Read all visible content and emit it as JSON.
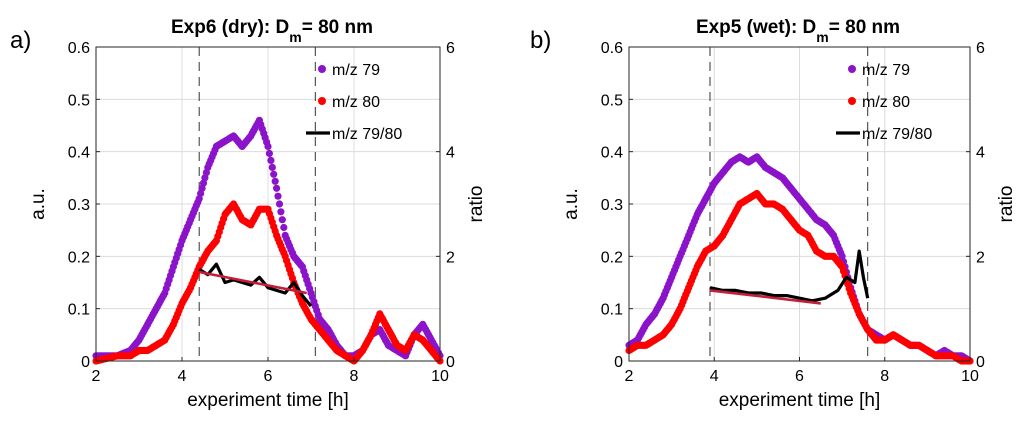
{
  "figure": {
    "panels": [
      {
        "label": "a)",
        "title_main": "Exp6 (dry): D",
        "title_sub": "m",
        "title_end": "= 80 nm"
      },
      {
        "label": "b)",
        "title_main": "Exp5 (wet): D",
        "title_sub": "m",
        "title_end": "= 80 nm"
      }
    ]
  },
  "chart_data": [
    {
      "type": "scatter",
      "xlabel": "experiment time [h]",
      "ylabel": "a.u.",
      "y2label": "ratio",
      "xlim": [
        2,
        10
      ],
      "ylim": [
        0,
        0.6
      ],
      "y2lim": [
        0,
        6
      ],
      "xticks": [
        2,
        4,
        6,
        8,
        10
      ],
      "yticks": [
        0,
        0.1,
        0.2,
        0.3,
        0.4,
        0.5,
        0.6
      ],
      "y2ticks": [
        0,
        2,
        4,
        6
      ],
      "grid": true,
      "legend_position": "top-right",
      "vlines": [
        4.4,
        7.1
      ],
      "series": [
        {
          "name": "m/z 79",
          "axis": "left",
          "marker": "dots",
          "color": "#8b13c9",
          "x": [
            2.0,
            2.5,
            2.8,
            3.0,
            3.2,
            3.4,
            3.6,
            3.8,
            4.0,
            4.2,
            4.4,
            4.6,
            4.8,
            5.0,
            5.2,
            5.4,
            5.6,
            5.8,
            6.0,
            6.2,
            6.4,
            6.6,
            6.8,
            7.0,
            7.2,
            7.4,
            7.6,
            7.8,
            8.0,
            8.2,
            8.4,
            8.6,
            8.8,
            9.0,
            9.2,
            9.4,
            9.6,
            9.8,
            10.0
          ],
          "y": [
            0.01,
            0.01,
            0.02,
            0.04,
            0.07,
            0.1,
            0.13,
            0.18,
            0.23,
            0.27,
            0.31,
            0.37,
            0.41,
            0.42,
            0.43,
            0.41,
            0.43,
            0.46,
            0.41,
            0.33,
            0.24,
            0.2,
            0.18,
            0.13,
            0.08,
            0.06,
            0.03,
            0.01,
            0.01,
            0.02,
            0.05,
            0.06,
            0.03,
            0.02,
            0.01,
            0.05,
            0.07,
            0.04,
            0.01
          ]
        },
        {
          "name": "m/z 80",
          "axis": "left",
          "marker": "dots",
          "color": "#ff0000",
          "x": [
            2.0,
            2.5,
            2.8,
            3.0,
            3.2,
            3.4,
            3.6,
            3.8,
            4.0,
            4.2,
            4.4,
            4.6,
            4.8,
            5.0,
            5.2,
            5.4,
            5.6,
            5.8,
            6.0,
            6.2,
            6.4,
            6.6,
            6.8,
            7.0,
            7.2,
            7.4,
            7.6,
            7.8,
            8.0,
            8.2,
            8.4,
            8.6,
            8.8,
            9.0,
            9.2,
            9.4,
            9.6,
            9.8,
            10.0
          ],
          "y": [
            0.0,
            0.01,
            0.01,
            0.02,
            0.02,
            0.03,
            0.04,
            0.07,
            0.11,
            0.14,
            0.18,
            0.21,
            0.23,
            0.28,
            0.3,
            0.27,
            0.26,
            0.29,
            0.29,
            0.24,
            0.2,
            0.15,
            0.11,
            0.08,
            0.06,
            0.04,
            0.02,
            0.01,
            0.0,
            0.02,
            0.05,
            0.09,
            0.06,
            0.03,
            0.02,
            0.05,
            0.04,
            0.02,
            0.0
          ]
        },
        {
          "name": "m/z 79/80",
          "axis": "right",
          "marker": "line",
          "color": "#000000",
          "x": [
            4.4,
            4.6,
            4.8,
            5.0,
            5.2,
            5.4,
            5.6,
            5.8,
            6.0,
            6.2,
            6.4,
            6.6,
            6.8,
            7.0
          ],
          "y": [
            1.75,
            1.65,
            1.85,
            1.5,
            1.55,
            1.5,
            1.45,
            1.6,
            1.4,
            1.35,
            1.3,
            1.5,
            1.25,
            1.05
          ]
        },
        {
          "name": "",
          "axis": "right",
          "marker": "line",
          "color": "#c41e3a",
          "x": [
            4.4,
            6.9
          ],
          "y": [
            1.7,
            1.3
          ]
        }
      ]
    },
    {
      "type": "scatter",
      "xlabel": "experiment time [h]",
      "ylabel": "a.u.",
      "y2label": "ratio",
      "xlim": [
        2,
        10
      ],
      "ylim": [
        0,
        0.6
      ],
      "y2lim": [
        0,
        6
      ],
      "xticks": [
        2,
        4,
        6,
        8,
        10
      ],
      "yticks": [
        0,
        0.1,
        0.2,
        0.3,
        0.4,
        0.5,
        0.6
      ],
      "y2ticks": [
        0,
        2,
        4,
        6
      ],
      "grid": true,
      "legend_position": "top-right",
      "vlines": [
        3.9,
        7.6
      ],
      "series": [
        {
          "name": "m/z 79",
          "axis": "left",
          "marker": "dots",
          "color": "#8b13c9",
          "x": [
            2.0,
            2.2,
            2.4,
            2.6,
            2.8,
            3.0,
            3.2,
            3.4,
            3.6,
            3.8,
            4.0,
            4.2,
            4.4,
            4.6,
            4.8,
            5.0,
            5.2,
            5.4,
            5.6,
            5.8,
            6.0,
            6.2,
            6.4,
            6.6,
            6.8,
            7.0,
            7.2,
            7.4,
            7.6,
            7.8,
            8.0,
            8.2,
            8.4,
            8.6,
            8.8,
            9.0,
            9.2,
            9.4,
            9.6,
            9.8,
            10.0
          ],
          "y": [
            0.03,
            0.04,
            0.07,
            0.09,
            0.12,
            0.16,
            0.2,
            0.24,
            0.28,
            0.31,
            0.34,
            0.36,
            0.38,
            0.39,
            0.38,
            0.39,
            0.37,
            0.36,
            0.35,
            0.33,
            0.31,
            0.29,
            0.27,
            0.26,
            0.24,
            0.2,
            0.14,
            0.09,
            0.06,
            0.05,
            0.04,
            0.05,
            0.04,
            0.03,
            0.03,
            0.02,
            0.01,
            0.02,
            0.01,
            0.01,
            0.0
          ]
        },
        {
          "name": "m/z 80",
          "axis": "left",
          "marker": "dots",
          "color": "#ff0000",
          "x": [
            2.0,
            2.2,
            2.4,
            2.6,
            2.8,
            3.0,
            3.2,
            3.4,
            3.6,
            3.8,
            4.0,
            4.2,
            4.4,
            4.6,
            4.8,
            5.0,
            5.2,
            5.4,
            5.6,
            5.8,
            6.0,
            6.2,
            6.4,
            6.6,
            6.8,
            7.0,
            7.2,
            7.4,
            7.6,
            7.8,
            8.0,
            8.2,
            8.4,
            8.6,
            8.8,
            9.0,
            9.2,
            9.4,
            9.6,
            9.8,
            10.0
          ],
          "y": [
            0.02,
            0.03,
            0.03,
            0.04,
            0.05,
            0.07,
            0.1,
            0.14,
            0.18,
            0.21,
            0.22,
            0.24,
            0.27,
            0.3,
            0.31,
            0.32,
            0.3,
            0.3,
            0.29,
            0.27,
            0.25,
            0.24,
            0.21,
            0.2,
            0.2,
            0.18,
            0.13,
            0.09,
            0.06,
            0.04,
            0.04,
            0.05,
            0.04,
            0.03,
            0.03,
            0.02,
            0.01,
            0.01,
            0.01,
            0.0,
            0.0
          ]
        },
        {
          "name": "m/z 79/80",
          "axis": "right",
          "marker": "line",
          "color": "#000000",
          "x": [
            3.9,
            4.2,
            4.5,
            4.8,
            5.1,
            5.4,
            5.7,
            6.0,
            6.3,
            6.6,
            6.9,
            7.1,
            7.3,
            7.4,
            7.5,
            7.6
          ],
          "y": [
            1.4,
            1.35,
            1.35,
            1.3,
            1.3,
            1.25,
            1.25,
            1.2,
            1.15,
            1.2,
            1.35,
            1.6,
            1.5,
            2.1,
            1.6,
            1.2
          ]
        },
        {
          "name": "",
          "axis": "right",
          "marker": "line",
          "color": "#c41e3a",
          "x": [
            3.9,
            6.5
          ],
          "y": [
            1.35,
            1.1
          ]
        }
      ]
    }
  ]
}
